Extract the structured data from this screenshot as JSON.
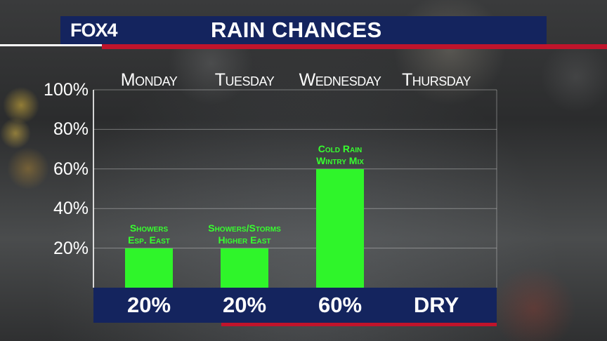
{
  "header": {
    "logo": "FOX4",
    "title": "RAIN CHANCES"
  },
  "colors": {
    "header_bg": "#14245e",
    "accent_red": "#c0142b",
    "bar": "#2ff52a",
    "note_text": "#37ff2f"
  },
  "chart_data": {
    "type": "bar",
    "title": "RAIN CHANCES",
    "categories": [
      "Monday",
      "Tuesday",
      "Wednesday",
      "Thursday"
    ],
    "values": [
      20,
      20,
      60,
      0
    ],
    "ylim": [
      0,
      100
    ],
    "yticks": [
      "20%",
      "40%",
      "60%",
      "80%",
      "100%"
    ],
    "grid": true,
    "notes": [
      "Showers\nEsp. East",
      "Showers/Storms\nHigher East",
      "Cold Rain\nWintry Mix",
      ""
    ],
    "value_labels": [
      "20%",
      "20%",
      "60%",
      "DRY"
    ]
  }
}
